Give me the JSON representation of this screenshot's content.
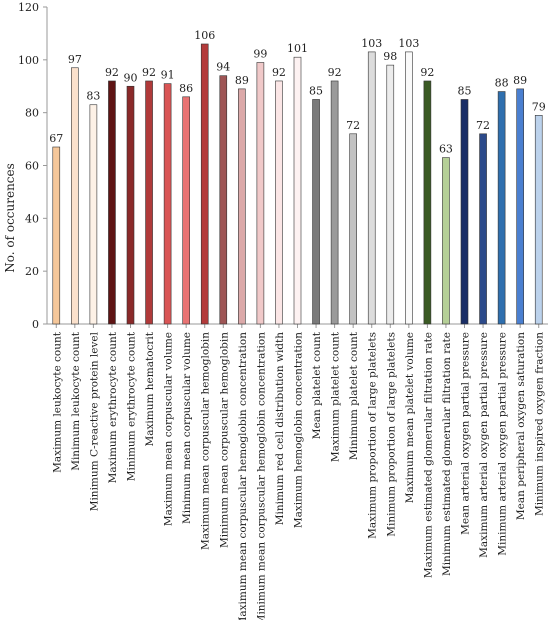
{
  "chart_data": {
    "type": "bar",
    "title": "",
    "xlabel": "",
    "ylabel": "No. of occurences",
    "ylim": [
      0,
      120
    ],
    "yticks": [
      0,
      20,
      40,
      60,
      80,
      100,
      120
    ],
    "grid": false,
    "legend": "none",
    "categories": [
      "Maximum leukocyte count",
      "Minimum leukocyte count",
      "Minimum C-reactive protein level",
      "Maximum erythrocyte count",
      "Minimum erythrocyte count",
      "Maximum hematocrit",
      "Maximum mean corpuscular volume",
      "Minimum mean corpuscular volume",
      "Maximum mean corpuscular hemoglobin",
      "Minimum mean corpuscular hemoglobin",
      "Maximum mean corpuscular hemoglobin concentration",
      "Minimum mean corpuscular hemoglobin concentration",
      "Minimum red cell distribution width",
      "Maximum hemoglobin concentration",
      "Mean platelet count",
      "Maximum platelet count",
      "Minimum platelet count",
      "Maximum proportion of large platelets",
      "Minimum proportion of large platelets",
      "Maximum mean platelet volume",
      "Maximum estimated glomerular filtration rate",
      "Minimum estimated glomerular filtration rate",
      "Mean arterial oxygen partial pressure",
      "Maximum arterial oxygen partial pressure",
      "Minimum arterial oxygen partial pressure",
      "Mean peripheral oxygen saturation",
      "Minimum inspired oxygen fraction"
    ],
    "values": [
      67,
      97,
      83,
      92,
      90,
      92,
      91,
      86,
      106,
      94,
      89,
      99,
      92,
      101,
      85,
      92,
      72,
      103,
      98,
      103,
      92,
      63,
      85,
      72,
      88,
      89,
      79
    ],
    "colors": [
      "#f5c79a",
      "#fbe1cc",
      "#fdf1e6",
      "#5e1414",
      "#8a2a2a",
      "#b03a3a",
      "#d95555",
      "#e87373",
      "#b33b3b",
      "#9e5555",
      "#dba9a9",
      "#f0c9c9",
      "#fbe6e6",
      "#fdf2f2",
      "#7a7a7a",
      "#9a9a9a",
      "#c2c2c2",
      "#dcdcdc",
      "#ececec",
      "#fafafa",
      "#3a5a24",
      "#b5cf97",
      "#1a2e66",
      "#2c4a8a",
      "#2f6fae",
      "#4a7fd0",
      "#bcd2ec"
    ]
  }
}
